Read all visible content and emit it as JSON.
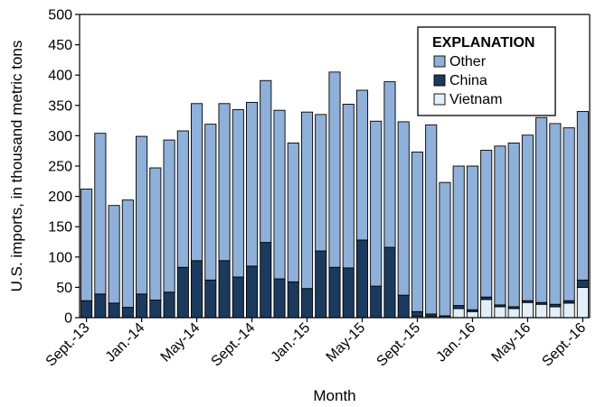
{
  "chart_data": {
    "type": "bar",
    "stacked": true,
    "xlabel": "Month",
    "ylabel": "U.S. imports, in thousand metric tons",
    "ylim": [
      0,
      500
    ],
    "y_ticks": [
      0,
      50,
      100,
      150,
      200,
      250,
      300,
      350,
      400,
      450,
      500
    ],
    "grid": false,
    "legend": {
      "title": "EXPLANATION",
      "placement": "top-right",
      "entries": [
        "Other",
        "China",
        "Vietnam"
      ]
    },
    "x_tick_labels": [
      {
        "index": 0,
        "label": "Sept.-13"
      },
      {
        "index": 4,
        "label": "Jan.-14"
      },
      {
        "index": 8,
        "label": "May-14"
      },
      {
        "index": 12,
        "label": "Sept.-14"
      },
      {
        "index": 16,
        "label": "Jan.-15"
      },
      {
        "index": 20,
        "label": "May-15"
      },
      {
        "index": 24,
        "label": "Sept.-15"
      },
      {
        "index": 28,
        "label": "Jan.-16"
      },
      {
        "index": 32,
        "label": "May-16"
      },
      {
        "index": 36,
        "label": "Sept.-16"
      }
    ],
    "totals": [
      212,
      304,
      185,
      194,
      299,
      247,
      293,
      308,
      353,
      319,
      353,
      343,
      355,
      391,
      342,
      288,
      339,
      335,
      405,
      352,
      375,
      324,
      389,
      323,
      273,
      318,
      223,
      250,
      250,
      276,
      283,
      288,
      301,
      330,
      320,
      313,
      340
    ],
    "series": [
      {
        "name": "Vietnam",
        "color": "#e2eef8",
        "values": [
          0,
          0,
          0,
          0,
          0,
          0,
          0,
          0,
          0,
          0,
          0,
          0,
          0,
          0,
          0,
          0,
          0,
          0,
          0,
          0,
          0,
          0,
          0,
          0,
          2,
          2,
          2,
          15,
          10,
          30,
          18,
          15,
          25,
          22,
          18,
          24,
          50
        ]
      },
      {
        "name": "China",
        "color": "#1b3a5e",
        "values": [
          28,
          39,
          24,
          17,
          39,
          29,
          42,
          83,
          94,
          62,
          94,
          67,
          85,
          124,
          64,
          59,
          48,
          110,
          83,
          82,
          128,
          52,
          116,
          37,
          8,
          4,
          1,
          5,
          3,
          4,
          3,
          3,
          3,
          3,
          4,
          4,
          12
        ]
      },
      {
        "name": "Other",
        "color": "#8fb0d8",
        "values": [
          184,
          265,
          161,
          177,
          260,
          218,
          251,
          225,
          259,
          257,
          259,
          276,
          270,
          267,
          278,
          229,
          291,
          225,
          322,
          270,
          247,
          272,
          273,
          286,
          263,
          312,
          220,
          230,
          237,
          242,
          262,
          270,
          273,
          305,
          298,
          285,
          278
        ]
      }
    ]
  }
}
